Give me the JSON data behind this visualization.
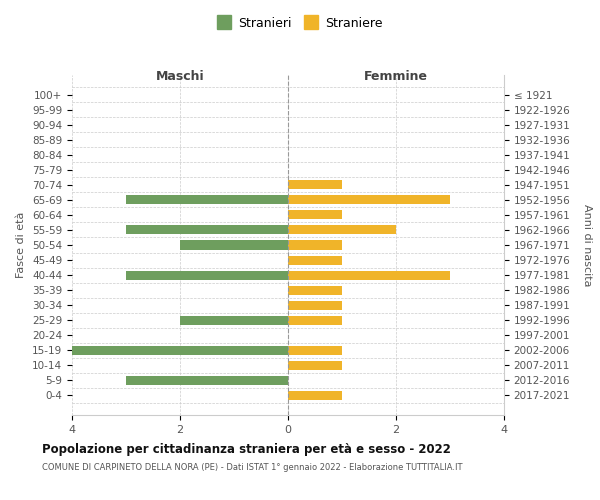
{
  "age_groups": [
    "100+",
    "95-99",
    "90-94",
    "85-89",
    "80-84",
    "75-79",
    "70-74",
    "65-69",
    "60-64",
    "55-59",
    "50-54",
    "45-49",
    "40-44",
    "35-39",
    "30-34",
    "25-29",
    "20-24",
    "15-19",
    "10-14",
    "5-9",
    "0-4"
  ],
  "birth_years": [
    "≤ 1921",
    "1922-1926",
    "1927-1931",
    "1932-1936",
    "1937-1941",
    "1942-1946",
    "1947-1951",
    "1952-1956",
    "1957-1961",
    "1962-1966",
    "1967-1971",
    "1972-1976",
    "1977-1981",
    "1982-1986",
    "1987-1991",
    "1992-1996",
    "1997-2001",
    "2002-2006",
    "2007-2011",
    "2012-2016",
    "2017-2021"
  ],
  "maschi": [
    0,
    0,
    0,
    0,
    0,
    0,
    0,
    3,
    0,
    3,
    2,
    0,
    3,
    0,
    0,
    2,
    0,
    4,
    0,
    3,
    0
  ],
  "femmine": [
    0,
    0,
    0,
    0,
    0,
    0,
    1,
    3,
    1,
    2,
    1,
    1,
    3,
    1,
    1,
    1,
    0,
    1,
    1,
    0,
    1
  ],
  "maschi_color": "#6e9e5e",
  "femmine_color": "#f0b429",
  "title": "Popolazione per cittadinanza straniera per età e sesso - 2022",
  "subtitle": "COMUNE DI CARPINETO DELLA NORA (PE) - Dati ISTAT 1° gennaio 2022 - Elaborazione TUTTITALIA.IT",
  "ylabel_left": "Fasce di età",
  "ylabel_right": "Anni di nascita",
  "xlabel_left": "Maschi",
  "xlabel_right": "Femmine",
  "legend_maschi": "Stranieri",
  "legend_femmine": "Straniere",
  "xlim": 4,
  "background_color": "#ffffff",
  "grid_color": "#cccccc"
}
